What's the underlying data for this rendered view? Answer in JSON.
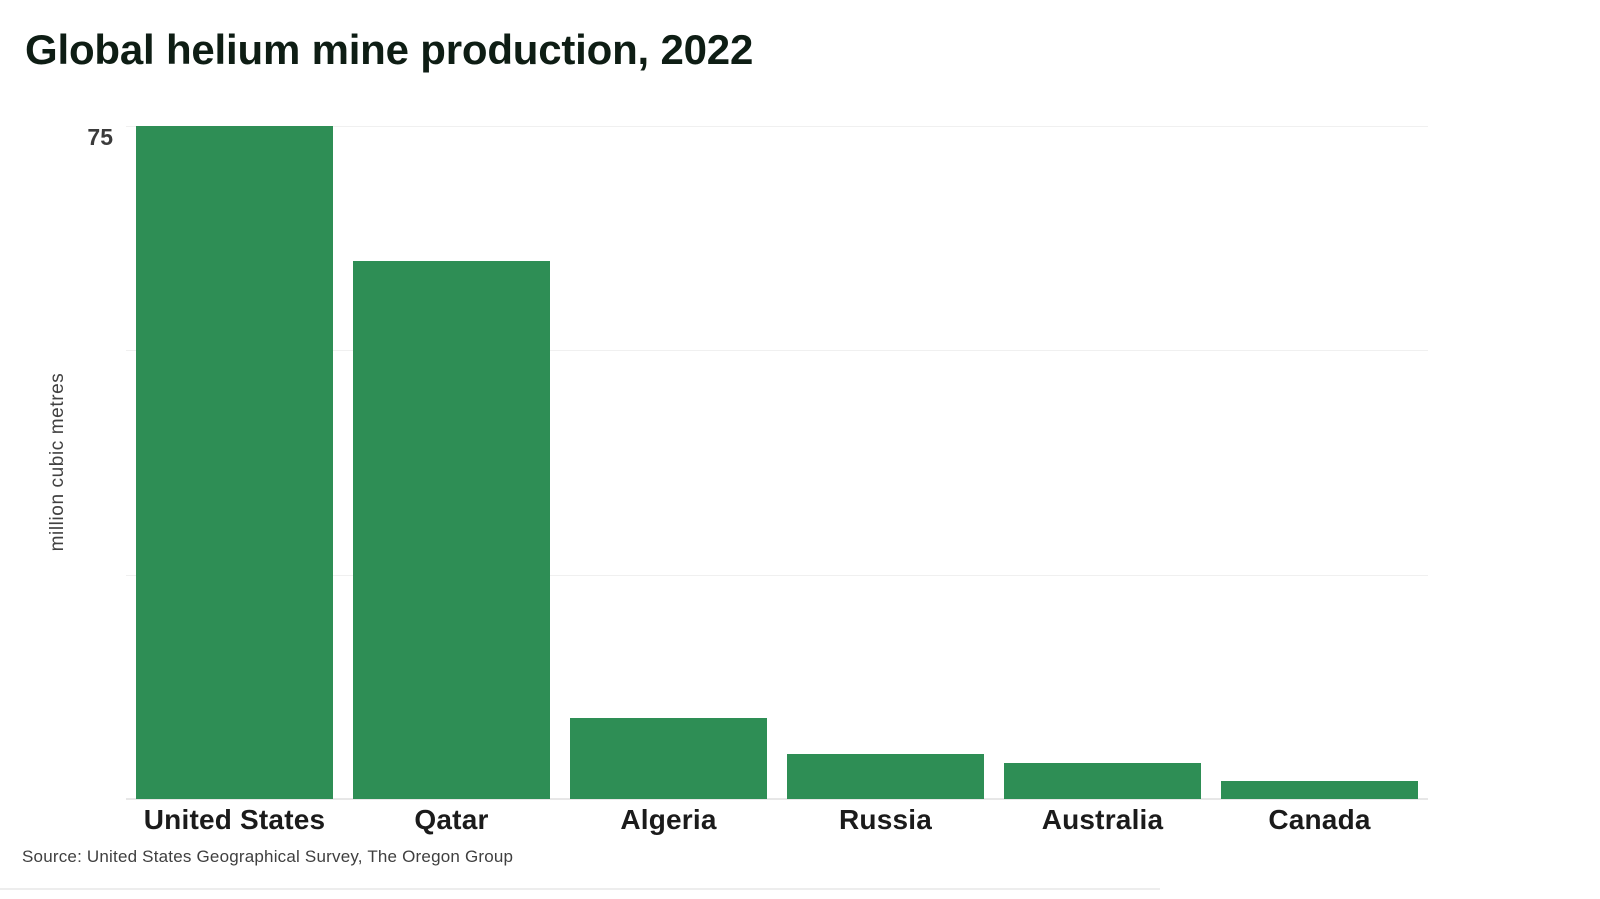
{
  "title": "Global helium mine production, 2022",
  "source": "Source: United States Geographical Survey, The Oregon Group",
  "axis": {
    "tick_75": "75",
    "y_label": "million cubic metres"
  },
  "chart_data": {
    "type": "bar",
    "title": "Global helium mine production, 2022",
    "categories": [
      "United States",
      "Qatar",
      "Algeria",
      "Russia",
      "Australia",
      "Canada"
    ],
    "values": [
      75,
      60,
      9,
      5,
      4,
      2
    ],
    "xlabel": "",
    "ylabel": "million cubic metres",
    "ylim": [
      0,
      75
    ],
    "yticks_labeled": [
      75
    ],
    "gridline_values": [
      25,
      50,
      75
    ],
    "grid": true,
    "legend": false,
    "bar_color": "#2e8e55",
    "gridline_color": "#f0f0f0",
    "baseline_color": "#e7e7e7"
  }
}
